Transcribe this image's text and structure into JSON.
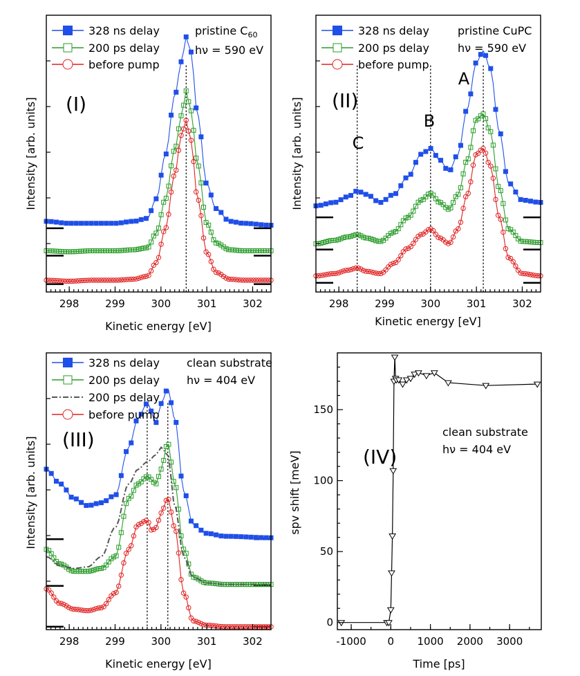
{
  "chart_data": [
    {
      "type": "line",
      "id": "I",
      "panel_label": "(I)",
      "xlabel": "Kinetic energy [eV]",
      "ylabel": "Intensity [arb. units]",
      "xlim": [
        297.5,
        302.4
      ],
      "xticks": [
        298,
        299,
        300,
        301,
        302
      ],
      "annotation": [
        "pristine C60",
        "hν = 590 eV"
      ],
      "vlines": [
        300.55
      ],
      "series": [
        {
          "name": "328 ns delay",
          "color": "#1f4fe8",
          "marker": "square-filled",
          "baseline": 0.65,
          "y0": 0.72,
          "x": [
            297.5,
            298.0,
            298.5,
            299.0,
            299.4,
            299.7,
            299.9,
            300.1,
            300.3,
            300.45,
            300.55,
            300.65,
            300.8,
            301.0,
            301.2,
            301.5,
            301.8,
            302.4
          ],
          "y": [
            0.72,
            0.7,
            0.7,
            0.7,
            0.72,
            0.75,
            0.95,
            1.4,
            2.0,
            2.35,
            2.6,
            2.45,
            1.8,
            1.1,
            0.85,
            0.72,
            0.7,
            0.68
          ]
        },
        {
          "name": "200 ps delay",
          "color": "#2a9c2a",
          "marker": "square-open",
          "baseline": 0.37,
          "y0": 0.42,
          "x": [
            297.5,
            298.0,
            298.5,
            299.0,
            299.4,
            299.7,
            299.9,
            300.1,
            300.3,
            300.45,
            300.55,
            300.65,
            300.8,
            301.0,
            301.2,
            301.5,
            301.8,
            302.4
          ],
          "y": [
            0.42,
            0.41,
            0.42,
            0.42,
            0.43,
            0.45,
            0.6,
            0.95,
            1.45,
            1.8,
            2.05,
            1.85,
            1.3,
            0.7,
            0.5,
            0.43,
            0.42,
            0.42
          ]
        },
        {
          "name": "before pump",
          "color": "#e02020",
          "marker": "circle-open",
          "baseline": 0.08,
          "y0": 0.12,
          "x": [
            297.5,
            298.0,
            298.5,
            299.0,
            299.4,
            299.7,
            299.9,
            300.1,
            300.3,
            300.45,
            300.55,
            300.65,
            300.8,
            301.0,
            301.2,
            301.5,
            301.8,
            302.4
          ],
          "y": [
            0.12,
            0.11,
            0.12,
            0.12,
            0.13,
            0.16,
            0.3,
            0.65,
            1.2,
            1.6,
            1.75,
            1.55,
            0.95,
            0.4,
            0.2,
            0.13,
            0.12,
            0.12
          ]
        }
      ]
    },
    {
      "type": "line",
      "id": "II",
      "panel_label": "(II)",
      "xlabel": "Kinetic energy [eV]",
      "ylabel": "Intensity [arb. units]",
      "xlim": [
        297.5,
        302.4
      ],
      "xticks": [
        298,
        299,
        300,
        301,
        302
      ],
      "annotation": [
        "pristine CuPC",
        "hν = 590 eV"
      ],
      "vlines": [
        298.4,
        300.0,
        301.15
      ],
      "peak_labels": [
        {
          "text": "C",
          "x": 298.4
        },
        {
          "text": "B",
          "x": 300.0
        },
        {
          "text": "A",
          "x": 300.85
        }
      ],
      "series": [
        {
          "name": "328 ns delay",
          "color": "#1f4fe8",
          "marker": "square-filled",
          "baseline": 0.65,
          "y0": 0.75,
          "x": [
            297.5,
            297.9,
            298.2,
            298.4,
            298.6,
            298.9,
            299.2,
            299.5,
            299.8,
            300.0,
            300.2,
            300.4,
            300.6,
            300.8,
            301.0,
            301.15,
            301.3,
            301.5,
            301.7,
            302.0,
            302.4
          ],
          "y": [
            0.75,
            0.78,
            0.83,
            0.88,
            0.85,
            0.78,
            0.85,
            1.0,
            1.2,
            1.25,
            1.15,
            1.05,
            1.2,
            1.6,
            2.0,
            2.1,
            1.95,
            1.4,
            0.95,
            0.8,
            0.78
          ]
        },
        {
          "name": "200 ps delay",
          "color": "#2a9c2a",
          "marker": "square-open",
          "baseline": 0.37,
          "y0": 0.42,
          "x": [
            297.5,
            297.9,
            298.2,
            298.4,
            298.6,
            298.9,
            299.2,
            299.5,
            299.8,
            300.0,
            300.2,
            300.4,
            300.6,
            300.8,
            301.0,
            301.15,
            301.3,
            301.5,
            301.7,
            302.0,
            302.4
          ],
          "y": [
            0.42,
            0.45,
            0.48,
            0.5,
            0.47,
            0.44,
            0.52,
            0.65,
            0.8,
            0.86,
            0.78,
            0.72,
            0.85,
            1.15,
            1.5,
            1.55,
            1.4,
            0.9,
            0.55,
            0.44,
            0.43
          ]
        },
        {
          "name": "before pump",
          "color": "#e02020",
          "marker": "circle-open",
          "baseline": 0.08,
          "y0": 0.14,
          "x": [
            297.5,
            297.9,
            298.2,
            298.4,
            298.6,
            298.9,
            299.2,
            299.5,
            299.8,
            300.0,
            300.2,
            300.4,
            300.6,
            300.8,
            301.0,
            301.15,
            301.3,
            301.5,
            301.7,
            302.0,
            302.4
          ],
          "y": [
            0.14,
            0.16,
            0.19,
            0.21,
            0.18,
            0.16,
            0.25,
            0.38,
            0.5,
            0.55,
            0.47,
            0.42,
            0.55,
            0.85,
            1.2,
            1.25,
            1.1,
            0.65,
            0.3,
            0.16,
            0.14
          ]
        }
      ]
    },
    {
      "type": "line",
      "id": "III",
      "panel_label": "(III)",
      "xlabel": "Kinetic energy [eV]",
      "ylabel": "Intensity [arb. units]",
      "xlim": [
        297.5,
        302.4
      ],
      "xticks": [
        298,
        299,
        300,
        301,
        302
      ],
      "annotation": [
        "clean substrate",
        "hν = 404 eV"
      ],
      "vlines": [
        299.7,
        300.15
      ],
      "series": [
        {
          "name": "328 ns delay",
          "color": "#1f4fe8",
          "marker": "square-filled",
          "baseline": 0.62,
          "y0": 1.1,
          "x": [
            297.5,
            297.8,
            298.1,
            298.4,
            298.7,
            299.0,
            299.3,
            299.5,
            299.7,
            299.9,
            300.0,
            300.15,
            300.3,
            300.5,
            300.7,
            301.0,
            301.4,
            302.4
          ],
          "y": [
            1.1,
            1.0,
            0.9,
            0.85,
            0.87,
            0.92,
            1.25,
            1.45,
            1.55,
            1.42,
            1.55,
            1.65,
            1.45,
            0.95,
            0.72,
            0.66,
            0.64,
            0.63
          ]
        },
        {
          "name": "200 ps delay",
          "color": "#2a9c2a",
          "marker": "square-open",
          "baseline": 0.3,
          "y0": 0.55,
          "x": [
            297.5,
            297.8,
            298.1,
            298.4,
            298.7,
            299.0,
            299.3,
            299.5,
            299.7,
            299.9,
            300.0,
            300.15,
            300.3,
            300.5,
            300.7,
            301.0,
            301.4,
            302.4
          ],
          "y": [
            0.55,
            0.45,
            0.4,
            0.4,
            0.42,
            0.5,
            0.9,
            1.0,
            1.05,
            1.0,
            1.1,
            1.28,
            1.0,
            0.55,
            0.36,
            0.32,
            0.31,
            0.31
          ]
        },
        {
          "name": "200 ps delay",
          "color": "#555555",
          "marker": "none",
          "dash": "dashdot",
          "baseline": null,
          "y0": 0.5,
          "x": [
            297.5,
            297.8,
            298.1,
            298.4,
            298.7,
            299.0,
            299.3,
            299.5,
            299.7,
            299.9,
            300.0,
            300.15,
            300.3,
            300.5,
            300.7,
            301.0,
            301.4,
            302.4
          ],
          "y": [
            0.5,
            0.44,
            0.42,
            0.43,
            0.5,
            0.7,
            1.0,
            1.1,
            1.15,
            1.2,
            1.25,
            1.2,
            0.85,
            0.5,
            0.36,
            0.32,
            0.31,
            0.31
          ]
        },
        {
          "name": "before pump",
          "color": "#e02020",
          "marker": "circle-open",
          "baseline": 0.02,
          "y0": 0.28,
          "x": [
            297.5,
            297.8,
            298.1,
            298.4,
            298.7,
            299.0,
            299.3,
            299.5,
            299.7,
            299.8,
            299.9,
            300.0,
            300.15,
            300.3,
            300.5,
            300.7,
            301.0,
            301.4,
            302.4
          ],
          "y": [
            0.28,
            0.18,
            0.14,
            0.13,
            0.15,
            0.25,
            0.55,
            0.72,
            0.75,
            0.68,
            0.7,
            0.8,
            0.9,
            0.7,
            0.25,
            0.06,
            0.03,
            0.02,
            0.02
          ]
        }
      ]
    },
    {
      "type": "line",
      "id": "IV",
      "panel_label": "(IV)",
      "xlabel": "Time [ps]",
      "ylabel": "spv shift [meV]",
      "xlim": [
        -1350,
        3800
      ],
      "ylim": [
        -5,
        190
      ],
      "xticks": [
        -1000,
        0,
        1000,
        2000,
        3000
      ],
      "yticks": [
        0,
        50,
        100,
        150
      ],
      "annotation": [
        "clean substrate",
        "hν = 404 eV"
      ],
      "series": [
        {
          "name": "spv shift",
          "color": "#000000",
          "marker": "triangle-down-open",
          "x": [
            -1250,
            -100,
            -50,
            0,
            20,
            40,
            60,
            80,
            100,
            120,
            140,
            200,
            300,
            400,
            500,
            600,
            700,
            900,
            1100,
            1450,
            2400,
            3700
          ],
          "y": [
            0,
            0,
            0,
            9,
            35,
            61,
            107,
            170,
            187,
            172,
            171,
            171,
            168,
            171,
            172,
            175,
            176,
            174,
            176,
            169,
            167,
            168
          ]
        }
      ]
    }
  ]
}
